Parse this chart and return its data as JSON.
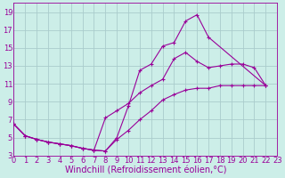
{
  "xlabel": "Windchill (Refroidissement éolien,°C)",
  "background_color": "#cceee8",
  "grid_color": "#aacccc",
  "line_color": "#990099",
  "xlim": [
    0,
    23
  ],
  "ylim": [
    3,
    20
  ],
  "xticks": [
    0,
    1,
    2,
    3,
    4,
    5,
    6,
    7,
    8,
    9,
    10,
    11,
    12,
    13,
    14,
    15,
    16,
    17,
    18,
    19,
    20,
    21,
    22,
    23
  ],
  "yticks": [
    3,
    5,
    7,
    9,
    11,
    13,
    15,
    17,
    19
  ],
  "line1_x": [
    0,
    1,
    2,
    3,
    4,
    5,
    6,
    7,
    8,
    9,
    10,
    11,
    12,
    13,
    14,
    15,
    16,
    17,
    22
  ],
  "line1_y": [
    6.5,
    5.2,
    4.8,
    4.5,
    4.3,
    4.1,
    3.8,
    3.6,
    3.5,
    5.0,
    8.5,
    12.5,
    13.2,
    15.2,
    15.6,
    18.0,
    18.7,
    16.2,
    10.8
  ],
  "line2_x": [
    0,
    1,
    2,
    3,
    4,
    5,
    6,
    7,
    8,
    9,
    10,
    11,
    12,
    13,
    14,
    15,
    16,
    17,
    18,
    19,
    20,
    21,
    22
  ],
  "line2_y": [
    6.5,
    5.2,
    4.8,
    4.5,
    4.3,
    4.1,
    3.8,
    3.6,
    7.2,
    8.0,
    8.8,
    10.0,
    10.8,
    11.5,
    13.8,
    14.5,
    13.5,
    12.8,
    13.0,
    13.2,
    13.2,
    12.8,
    10.8
  ],
  "line3_x": [
    0,
    1,
    2,
    3,
    4,
    5,
    6,
    7,
    8,
    9,
    10,
    11,
    12,
    13,
    14,
    15,
    16,
    17,
    18,
    19,
    20,
    21,
    22
  ],
  "line3_y": [
    6.5,
    5.2,
    4.8,
    4.5,
    4.3,
    4.1,
    3.8,
    3.6,
    3.5,
    4.8,
    5.8,
    7.0,
    8.0,
    9.2,
    9.8,
    10.3,
    10.5,
    10.5,
    10.8,
    10.8,
    10.8,
    10.8,
    10.8
  ],
  "tick_fontsize": 6,
  "xlabel_fontsize": 7,
  "marker_size": 2.5,
  "lw": 0.8
}
